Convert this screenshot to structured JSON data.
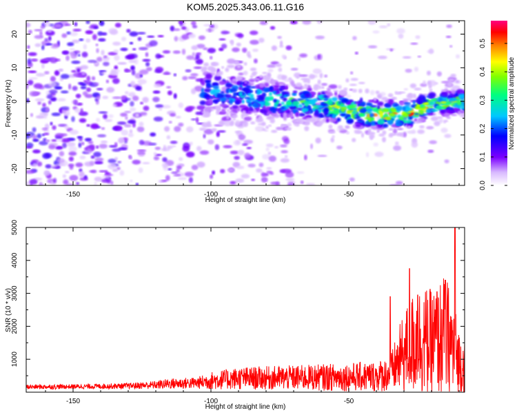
{
  "title": "KOM5.2025.343.06.11.G16",
  "chart_data": [
    {
      "type": "heatmap",
      "xlabel": "Height of straight line (km)",
      "ylabel": "Frequency (Hz)",
      "xlim": [
        -167,
        -8
      ],
      "ylim": [
        -25,
        24
      ],
      "xticks": [
        -150,
        -100,
        -50
      ],
      "yticks": [
        -20,
        -10,
        0,
        10,
        20
      ],
      "grid": false,
      "colorbar": {
        "label": "Normalized spectral amplitude",
        "range": [
          0.0,
          0.58
        ],
        "ticks": [
          0.0,
          0.1,
          0.2,
          0.3,
          0.4,
          0.5
        ],
        "tick_labels": [
          "0.0",
          "0.1",
          "0.2",
          "0.3",
          "0.4",
          "0.5"
        ],
        "colors": [
          "#ffffff",
          "#7b00ff",
          "#0000ff",
          "#00c8ff",
          "#00ff80",
          "#80ff00",
          "#ffff00",
          "#ff8000",
          "#ff0000",
          "#ff0080"
        ]
      },
      "ridge": {
        "description_points_x": [
          -100,
          -90,
          -80,
          -70,
          -60,
          -50,
          -40,
          -30,
          -20,
          -10
        ],
        "center_freq": [
          3,
          2,
          0.5,
          0,
          -1,
          -3,
          -4,
          -4,
          -1,
          0
        ],
        "peak_amplitude": [
          0.22,
          0.25,
          0.28,
          0.32,
          0.35,
          0.4,
          0.45,
          0.5,
          0.42,
          0.38
        ]
      }
    },
    {
      "type": "line",
      "xlabel": "Height of straight line (km)",
      "ylabel": "SNR (10 * v/v)",
      "xlim": [
        -167,
        -8
      ],
      "ylim": [
        0,
        5000
      ],
      "xticks": [
        -150,
        -100,
        -50
      ],
      "yticks": [
        1000,
        2000,
        3000,
        4000,
        5000
      ],
      "grid": false,
      "series": [
        {
          "color": "#ff0000",
          "envelope_x": [
            -167,
            -150,
            -130,
            -120,
            -115,
            -105,
            -100,
            -90,
            -80,
            -70,
            -60,
            -50,
            -45,
            -40,
            -35,
            -30,
            -25,
            -20,
            -15,
            -12,
            -10,
            -8
          ],
          "envelope_mean": [
            160,
            170,
            190,
            220,
            260,
            280,
            350,
            420,
            430,
            440,
            450,
            460,
            470,
            480,
            550,
            1200,
            1600,
            1500,
            1700,
            1300,
            900,
            800
          ],
          "envelope_amp": [
            80,
            80,
            100,
            140,
            180,
            200,
            300,
            380,
            400,
            420,
            450,
            480,
            500,
            520,
            600,
            1400,
            1900,
            1800,
            2100,
            1700,
            1200,
            900
          ],
          "spikes": [
            {
              "x": -28,
              "y": 3750
            },
            {
              "x": -15,
              "y": 3400
            },
            {
              "x": -11.5,
              "y": 5000
            },
            {
              "x": -18,
              "y": 3050
            },
            {
              "x": -35,
              "y": 2900
            },
            {
              "x": -25,
              "y": 2950
            }
          ]
        }
      ]
    }
  ]
}
